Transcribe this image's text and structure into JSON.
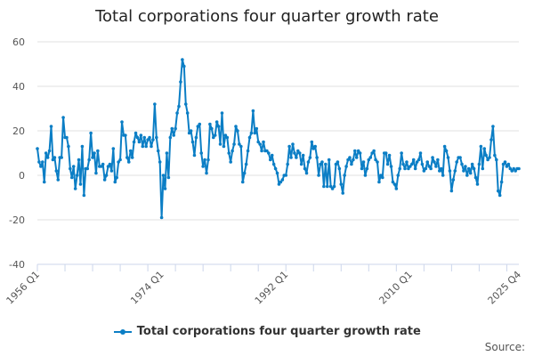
{
  "chart_data": {
    "type": "line",
    "title": "Total corporations four quarter growth rate",
    "x_start": "1956 Q1",
    "x_end": "2025 Q4",
    "frequency": "quarterly",
    "x_tick_labels": [
      "1956 Q1",
      "1974 Q1",
      "1992 Q1",
      "2010 Q1",
      "2025 Q4"
    ],
    "y_ticks": [
      -40,
      -20,
      0,
      20,
      40,
      60
    ],
    "ylim": [
      -40,
      60
    ],
    "grid": "horizontal",
    "legend_position": "bottom",
    "series": [
      {
        "name": "Total corporations four quarter growth rate",
        "color": "#0b7ec5",
        "values": [
          12,
          6,
          4,
          6,
          -3,
          10,
          8,
          11,
          22,
          7,
          8,
          2,
          -2,
          8,
          8,
          26,
          17,
          17,
          13,
          3,
          -1,
          4,
          -6,
          0,
          7,
          -4,
          13,
          -9,
          3,
          3,
          7,
          19,
          8,
          10,
          1,
          11,
          4,
          4,
          5,
          -2,
          0,
          4,
          5,
          2,
          12,
          -3,
          -1,
          6,
          7,
          24,
          18,
          18,
          8,
          6,
          11,
          8,
          15,
          19,
          17,
          15,
          18,
          13,
          17,
          13,
          16,
          17,
          13,
          16,
          32,
          17,
          11,
          6,
          -19,
          0,
          -6,
          10,
          -1,
          17,
          21,
          18,
          21,
          28,
          31,
          42,
          52,
          49,
          32,
          28,
          19,
          20,
          15,
          9,
          17,
          22,
          23,
          10,
          4,
          7,
          1,
          7,
          23,
          21,
          17,
          18,
          24,
          22,
          14,
          28,
          13,
          18,
          17,
          10,
          6,
          11,
          14,
          22,
          20,
          14,
          13,
          -3,
          1,
          5,
          11,
          17,
          19,
          29,
          19,
          21,
          15,
          14,
          11,
          15,
          11,
          11,
          10,
          7,
          9,
          5,
          3,
          1,
          -4,
          -3,
          -2,
          0,
          0,
          5,
          13,
          8,
          14,
          10,
          8,
          11,
          10,
          5,
          9,
          3,
          1,
          6,
          8,
          15,
          12,
          13,
          8,
          0,
          5,
          6,
          -5,
          5,
          -5,
          7,
          -5,
          -6,
          -5,
          5,
          6,
          3,
          -4,
          -8,
          0,
          4,
          7,
          8,
          5,
          7,
          11,
          8,
          11,
          10,
          3,
          6,
          0,
          3,
          7,
          8,
          10,
          11,
          7,
          6,
          -3,
          0,
          -1,
          10,
          10,
          5,
          9,
          4,
          -3,
          -4,
          -6,
          0,
          3,
          10,
          5,
          3,
          6,
          3,
          4,
          5,
          7,
          3,
          6,
          7,
          10,
          5,
          2,
          3,
          6,
          4,
          3,
          8,
          6,
          4,
          7,
          2,
          3,
          0,
          13,
          11,
          8,
          2,
          -7,
          -2,
          2,
          6,
          8,
          8,
          5,
          2,
          4,
          0,
          3,
          1,
          5,
          3,
          -1,
          -4,
          5,
          13,
          3,
          12,
          9,
          7,
          8,
          16,
          22,
          9,
          7,
          -7,
          -9,
          -3,
          5,
          6,
          4,
          5,
          3,
          2,
          3,
          2,
          3,
          3
        ]
      }
    ],
    "source_label": "Source:"
  }
}
